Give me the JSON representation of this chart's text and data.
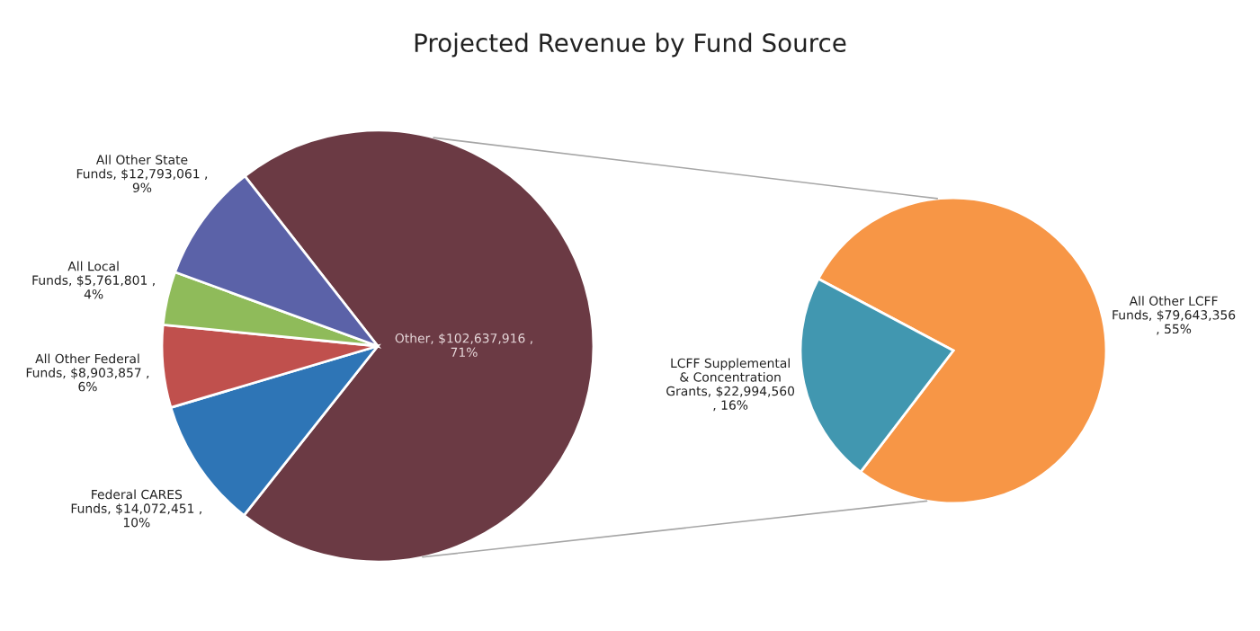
{
  "chart_data": [
    {
      "type": "pie",
      "title": "Projected Revenue by Fund Source",
      "categories": [
        "Other",
        "Federal CARES Funds",
        "All Other Federal Funds",
        "All Local Funds",
        "All Other State Funds"
      ],
      "values": [
        102637916,
        14072451,
        8903857,
        5761801,
        12793061
      ],
      "value_labels": [
        "$102,637,916 , 71%",
        "$14,072,451 , 10%",
        "$8,903,857 , 6%",
        "$5,761,801 , 4%",
        "$12,793,061 , 9%"
      ],
      "colors": [
        "#6b3a44",
        "#2e75b6",
        "#c0504d",
        "#8fbb5a",
        "#5b62a8"
      ]
    },
    {
      "type": "pie",
      "categories": [
        "All Other LCFF Funds",
        "LCFF Supplemental & Concentration Grants"
      ],
      "values": [
        79643356,
        22994560
      ],
      "value_labels": [
        "$79,643,356 , 55%",
        "$22,994,560 , 16%"
      ],
      "colors": [
        "#f79646",
        "#4197b0"
      ]
    }
  ]
}
